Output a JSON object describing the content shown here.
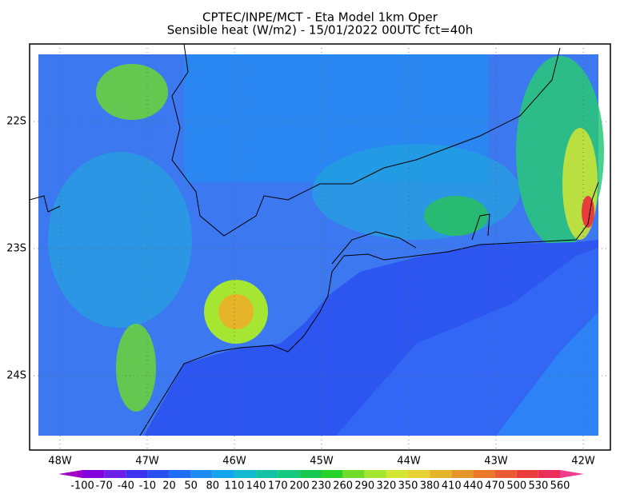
{
  "header": {
    "title": "CPTEC/INPE/MCT -  Eta Model 1km Oper",
    "subtitle": "Sensible heat (W/m2) - 15/01/2022 00UTC fct=40h"
  },
  "map": {
    "lon_labels": [
      "48W",
      "47W",
      "46W",
      "45W",
      "44W",
      "43W",
      "42W"
    ],
    "lat_labels": [
      "22S",
      "23S",
      "24S"
    ]
  },
  "colorbar": {
    "levels": [
      -100,
      -70,
      -40,
      -10,
      20,
      50,
      80,
      110,
      140,
      170,
      200,
      230,
      260,
      290,
      320,
      350,
      380,
      410,
      440,
      470,
      500,
      530,
      560
    ],
    "colors": [
      "#a000c8",
      "#8200dc",
      "#6e1ee6",
      "#3c32f0",
      "#2850f0",
      "#1e6ef5",
      "#1e8cf5",
      "#14a5f0",
      "#14b9d2",
      "#14c3a5",
      "#14c87d",
      "#14c850",
      "#28d228",
      "#6edc28",
      "#a5e632",
      "#d2e632",
      "#e6d232",
      "#e6b428",
      "#e69628",
      "#eb7828",
      "#eb5a32",
      "#eb3c3c",
      "#eb2d5a",
      "#f03c8c"
    ]
  }
}
